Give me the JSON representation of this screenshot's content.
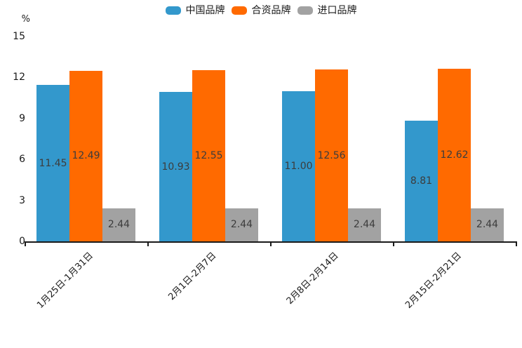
{
  "chart_data": {
    "type": "bar",
    "title": "",
    "xlabel": "",
    "ylabel": "%",
    "ylim": [
      0,
      15
    ],
    "yticks": [
      0,
      3,
      6,
      9,
      12,
      15
    ],
    "grid": false,
    "legend_position": "top-center",
    "value_labels": "inside-middle",
    "value_decimals": 2,
    "categories": [
      "1月25日-1月31日",
      "2月1日-2月7日",
      "2月8日-2月14日",
      "2月15日-2月21日"
    ],
    "series": [
      {
        "name": "中国品牌",
        "color": "#3398CC",
        "values": [
          11.45,
          10.93,
          11.0,
          8.81
        ]
      },
      {
        "name": "合资品牌",
        "color": "#FF6A00",
        "values": [
          12.49,
          12.55,
          12.56,
          12.62
        ]
      },
      {
        "name": "进口品牌",
        "color": "#A2A2A2",
        "values": [
          2.44,
          2.44,
          2.44,
          2.44
        ]
      }
    ],
    "colors": {
      "axis": "#1a1a1a",
      "value_label": "#3c3c3c",
      "tick_label": "#1a1a1a",
      "background": "#ffffff"
    }
  }
}
